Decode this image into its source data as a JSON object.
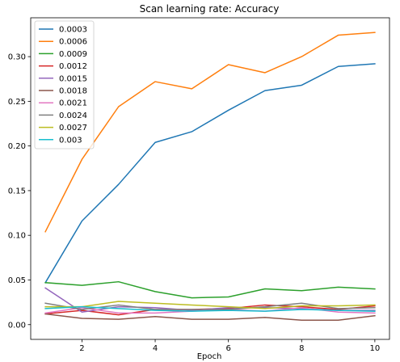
{
  "chart_data": {
    "type": "line",
    "title": "Scan learning rate: Accuracy",
    "xlabel": "Epoch",
    "ylabel": "",
    "xlim": [
      0.6,
      10.4
    ],
    "ylim": [
      -0.0165,
      0.3435
    ],
    "xticks": [
      2,
      4,
      6,
      8,
      10
    ],
    "yticks": [
      0.0,
      0.05,
      0.1,
      0.15,
      0.2,
      0.25,
      0.3
    ],
    "ytick_labels": [
      "0.00",
      "0.05",
      "0.10",
      "0.15",
      "0.20",
      "0.25",
      "0.30"
    ],
    "grid": false,
    "legend_position": "top-left",
    "x": [
      1,
      2,
      3,
      4,
      5,
      6,
      7,
      8,
      9,
      10
    ],
    "series": [
      {
        "name": "0.0003",
        "color": "#1f77b4",
        "values": [
          0.047,
          0.116,
          0.157,
          0.204,
          0.216,
          0.24,
          0.262,
          0.268,
          0.289,
          0.292
        ]
      },
      {
        "name": "0.0006",
        "color": "#ff7f0e",
        "values": [
          0.104,
          0.185,
          0.244,
          0.272,
          0.264,
          0.291,
          0.282,
          0.3,
          0.324,
          0.327
        ]
      },
      {
        "name": "0.0009",
        "color": "#2ca02c",
        "values": [
          0.047,
          0.044,
          0.048,
          0.037,
          0.03,
          0.031,
          0.04,
          0.038,
          0.042,
          0.04
        ]
      },
      {
        "name": "0.0012",
        "color": "#d62728",
        "values": [
          0.012,
          0.016,
          0.011,
          0.017,
          0.017,
          0.018,
          0.022,
          0.02,
          0.017,
          0.021
        ]
      },
      {
        "name": "0.0015",
        "color": "#9467bd",
        "values": [
          0.041,
          0.014,
          0.02,
          0.019,
          0.016,
          0.019,
          0.019,
          0.018,
          0.016,
          0.016
        ]
      },
      {
        "name": "0.0018",
        "color": "#8c564b",
        "values": [
          0.012,
          0.007,
          0.006,
          0.009,
          0.006,
          0.006,
          0.008,
          0.005,
          0.005,
          0.01
        ]
      },
      {
        "name": "0.0021",
        "color": "#e377c2",
        "values": [
          0.013,
          0.019,
          0.013,
          0.013,
          0.015,
          0.017,
          0.015,
          0.019,
          0.014,
          0.013
        ]
      },
      {
        "name": "0.0024",
        "color": "#7f7f7f",
        "values": [
          0.024,
          0.017,
          0.022,
          0.017,
          0.017,
          0.017,
          0.02,
          0.024,
          0.018,
          0.019
        ]
      },
      {
        "name": "0.0027",
        "color": "#bcbd22",
        "values": [
          0.02,
          0.02,
          0.026,
          0.024,
          0.022,
          0.02,
          0.018,
          0.021,
          0.021,
          0.022
        ]
      },
      {
        "name": "0.003",
        "color": "#17becf",
        "values": [
          0.018,
          0.02,
          0.018,
          0.016,
          0.015,
          0.016,
          0.015,
          0.017,
          0.016,
          0.015
        ]
      }
    ]
  }
}
